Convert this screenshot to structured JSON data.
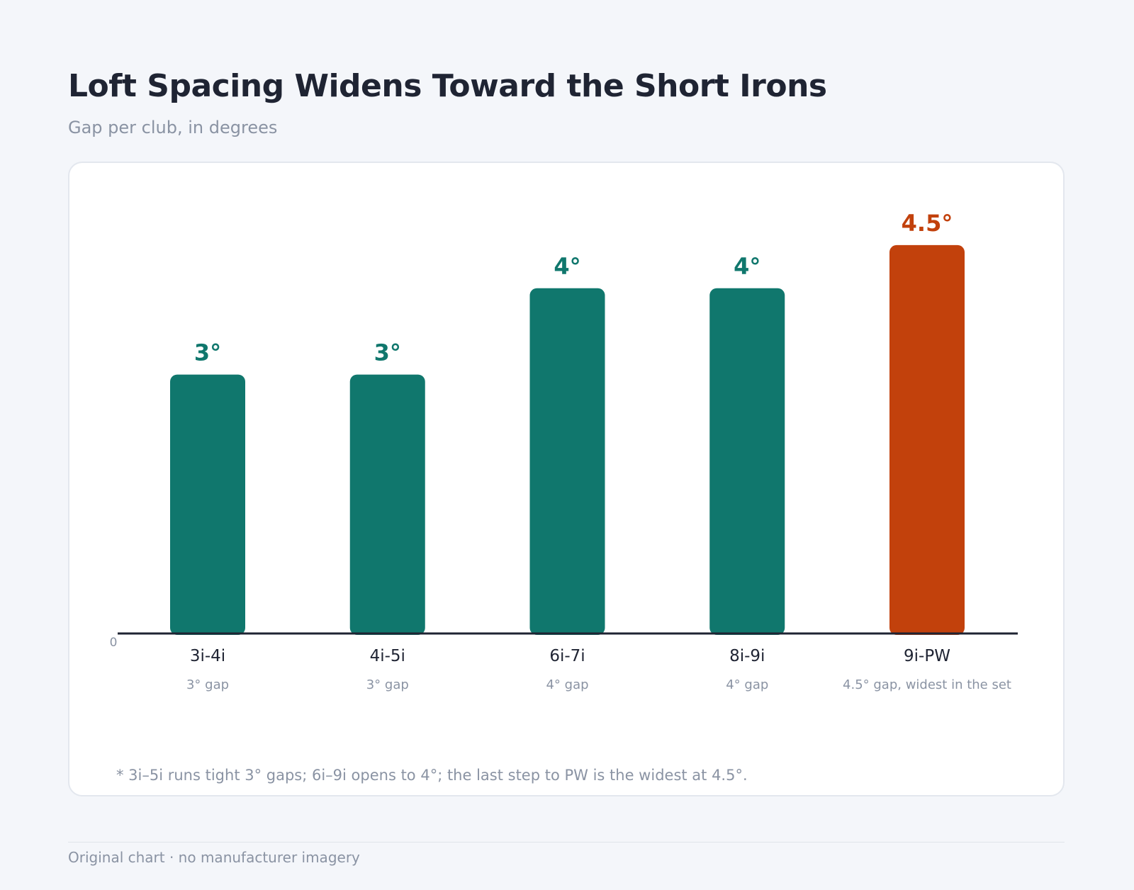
{
  "header": {
    "title": "Loft Spacing Widens Toward the Short Irons",
    "subtitle": "Gap per club, in degrees"
  },
  "chart_data": {
    "type": "bar",
    "categories": [
      "3i-4i",
      "4i-5i",
      "6i-7i",
      "8i-9i",
      "9i-PW"
    ],
    "values": [
      3,
      3,
      4,
      4,
      4.5
    ],
    "value_labels": [
      "3°",
      "3°",
      "4°",
      "4°",
      "4.5°"
    ],
    "sub_labels": [
      "3° gap",
      "3° gap",
      "4° gap",
      "4° gap",
      "4.5° gap, widest in the set"
    ],
    "y_tick_labels": [
      "0"
    ],
    "ylim": [
      0,
      4.5
    ],
    "grid": false,
    "colors": {
      "default": "#10776d",
      "highlight": "#c2410c"
    },
    "highlight_index": 4
  },
  "note": "* 3i–5i runs tight 3° gaps; 6i–9i opens to 4°; the last step to PW is the widest at 4.5°.",
  "footer": "Original chart · no manufacturer imagery"
}
